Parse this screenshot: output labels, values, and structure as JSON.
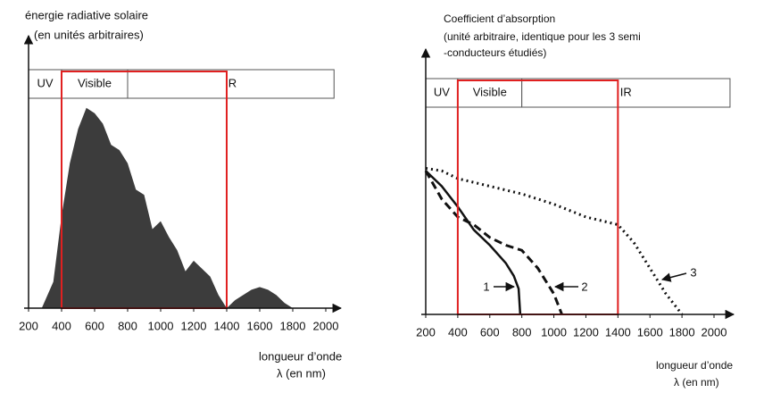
{
  "chart_data": [
    {
      "type": "area",
      "title": "énergie radiative solaire",
      "subtitle": [
        "(en unités arbitraires)"
      ],
      "x_label": [
        "longueur d’onde",
        "λ (en nm)"
      ],
      "x": [
        280,
        350,
        400,
        450,
        500,
        550,
        600,
        650,
        700,
        750,
        800,
        850,
        900,
        950,
        1000,
        1050,
        1100,
        1150,
        1200,
        1250,
        1300,
        1350,
        1400,
        1450,
        1500,
        1550,
        1600,
        1650,
        1700,
        1750,
        1800
      ],
      "values": [
        0,
        10,
        35,
        55,
        68,
        76,
        74,
        70,
        62,
        60,
        55,
        45,
        43,
        30,
        33,
        27,
        22,
        14,
        18,
        15,
        12,
        5,
        0,
        3,
        5,
        7,
        8,
        7,
        5,
        2,
        0
      ],
      "color": "#3c3c3c",
      "xlim": [
        200,
        2000
      ],
      "ylim": [
        0,
        100
      ],
      "xticks": [
        200,
        400,
        600,
        800,
        1000,
        1200,
        1400,
        1600,
        1800,
        2000
      ],
      "bands": [
        {
          "label": "UV",
          "from": 200,
          "to": 400
        },
        {
          "label": "Visible",
          "from": 400,
          "to": 800
        },
        {
          "label": "IR",
          "from": 800,
          "to": 2050
        }
      ],
      "highlight": {
        "from": 400,
        "to": 1400,
        "color": "#e02020"
      }
    },
    {
      "type": "line",
      "title": "Coefficient d’absorption",
      "subtitle": [
        "(unité arbitraire, identique pour les 3 semi",
        "-conducteurs étudiés)"
      ],
      "x_label": [
        "longueur d’onde",
        "λ (en nm)"
      ],
      "series": [
        {
          "name": "1",
          "color": "#111111",
          "dash": "solid",
          "x": [
            200,
            300,
            400,
            500,
            600,
            700,
            750,
            780,
            790
          ],
          "values": [
            56,
            50,
            42,
            33,
            27,
            20,
            15,
            10,
            0
          ]
        },
        {
          "name": "2",
          "color": "#111111",
          "dash": "dashed",
          "x": [
            200,
            300,
            400,
            500,
            600,
            700,
            800,
            900,
            1000,
            1050
          ],
          "values": [
            56,
            45,
            38,
            35,
            30,
            27,
            25,
            18,
            8,
            0
          ]
        },
        {
          "name": "3",
          "color": "#111111",
          "dash": "dotted",
          "x": [
            200,
            300,
            400,
            600,
            800,
            1000,
            1200,
            1400,
            1500,
            1600,
            1700,
            1800
          ],
          "values": [
            57,
            56,
            53,
            50,
            47,
            43,
            38,
            35,
            28,
            18,
            8,
            0
          ]
        }
      ],
      "xlim": [
        200,
        2000
      ],
      "ylim": [
        0,
        100
      ],
      "xticks": [
        200,
        400,
        600,
        800,
        1000,
        1200,
        1400,
        1600,
        1800,
        2000
      ],
      "bands": [
        {
          "label": "UV",
          "from": 200,
          "to": 400
        },
        {
          "label": "Visible",
          "from": 400,
          "to": 800
        },
        {
          "label": "IR",
          "from": 800,
          "to": 2100
        }
      ],
      "highlight": {
        "from": 400,
        "to": 1400,
        "color": "#e02020"
      }
    }
  ]
}
